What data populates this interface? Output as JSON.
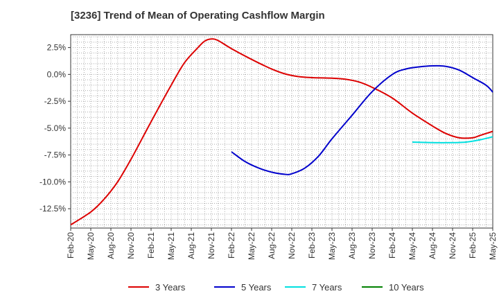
{
  "chart_data": {
    "type": "line",
    "title": "[3236]  Trend of Mean of Operating Cashflow Margin",
    "xlabel": "",
    "ylabel": "",
    "x_ticks": [
      "Feb-20",
      "May-20",
      "Aug-20",
      "Nov-20",
      "Feb-21",
      "May-21",
      "Aug-21",
      "Nov-21",
      "Feb-22",
      "May-22",
      "Aug-22",
      "Nov-22",
      "Feb-23",
      "May-23",
      "Aug-23",
      "Nov-23",
      "Feb-24",
      "May-24",
      "Aug-24",
      "Nov-24",
      "Feb-25",
      "May-25"
    ],
    "y_ticks": [
      "2.5%",
      "0.0%",
      "-2.5%",
      "-5.0%",
      "-7.5%",
      "-10.0%",
      "-12.5%"
    ],
    "y_tick_values": [
      2.5,
      0,
      -2.5,
      -5,
      -7.5,
      -10,
      -12.5
    ],
    "ylim": [
      -14.3,
      3.7
    ],
    "x_unit": "month index from Feb-20",
    "xlim": [
      0,
      63
    ],
    "grid": true,
    "legend_position": "bottom",
    "series": [
      {
        "name": "3 Years",
        "color": "#dd0000",
        "points": [
          [
            0,
            -14.0
          ],
          [
            3,
            -12.8
          ],
          [
            5,
            -11.6
          ],
          [
            7,
            -10.0
          ],
          [
            9,
            -7.9
          ],
          [
            12,
            -4.4
          ],
          [
            15,
            -1.0
          ],
          [
            17,
            1.1
          ],
          [
            19,
            2.5
          ],
          [
            20,
            3.1
          ],
          [
            21,
            3.3
          ],
          [
            22,
            3.15
          ],
          [
            24,
            2.4
          ],
          [
            27,
            1.4
          ],
          [
            30,
            0.5
          ],
          [
            32,
            0.05
          ],
          [
            34,
            -0.2
          ],
          [
            36,
            -0.3
          ],
          [
            39,
            -0.35
          ],
          [
            41,
            -0.45
          ],
          [
            43,
            -0.7
          ],
          [
            45,
            -1.2
          ],
          [
            48,
            -2.2
          ],
          [
            51,
            -3.6
          ],
          [
            54,
            -4.8
          ],
          [
            56,
            -5.5
          ],
          [
            58,
            -5.9
          ],
          [
            60,
            -5.9
          ],
          [
            61,
            -5.7
          ],
          [
            62,
            -5.5
          ],
          [
            63,
            -5.3
          ]
        ]
      },
      {
        "name": "5 Years",
        "color": "#0000cc",
        "points": [
          [
            24,
            -7.2
          ],
          [
            26,
            -8.1
          ],
          [
            28,
            -8.7
          ],
          [
            30,
            -9.1
          ],
          [
            32,
            -9.3
          ],
          [
            33,
            -9.25
          ],
          [
            35,
            -8.7
          ],
          [
            37,
            -7.6
          ],
          [
            39,
            -6.0
          ],
          [
            42,
            -3.8
          ],
          [
            45,
            -1.6
          ],
          [
            48,
            0.0
          ],
          [
            50,
            0.5
          ],
          [
            52,
            0.7
          ],
          [
            54,
            0.8
          ],
          [
            56,
            0.75
          ],
          [
            58,
            0.4
          ],
          [
            60,
            -0.3
          ],
          [
            62,
            -1.0
          ],
          [
            63,
            -1.65
          ]
        ]
      },
      {
        "name": "7 Years",
        "color": "#00e0e0",
        "points": [
          [
            51,
            -6.3
          ],
          [
            54,
            -6.35
          ],
          [
            57,
            -6.35
          ],
          [
            59,
            -6.3
          ],
          [
            61,
            -6.1
          ],
          [
            63,
            -5.8
          ]
        ]
      },
      {
        "name": "10 Years",
        "color": "#008000",
        "points": []
      }
    ]
  }
}
